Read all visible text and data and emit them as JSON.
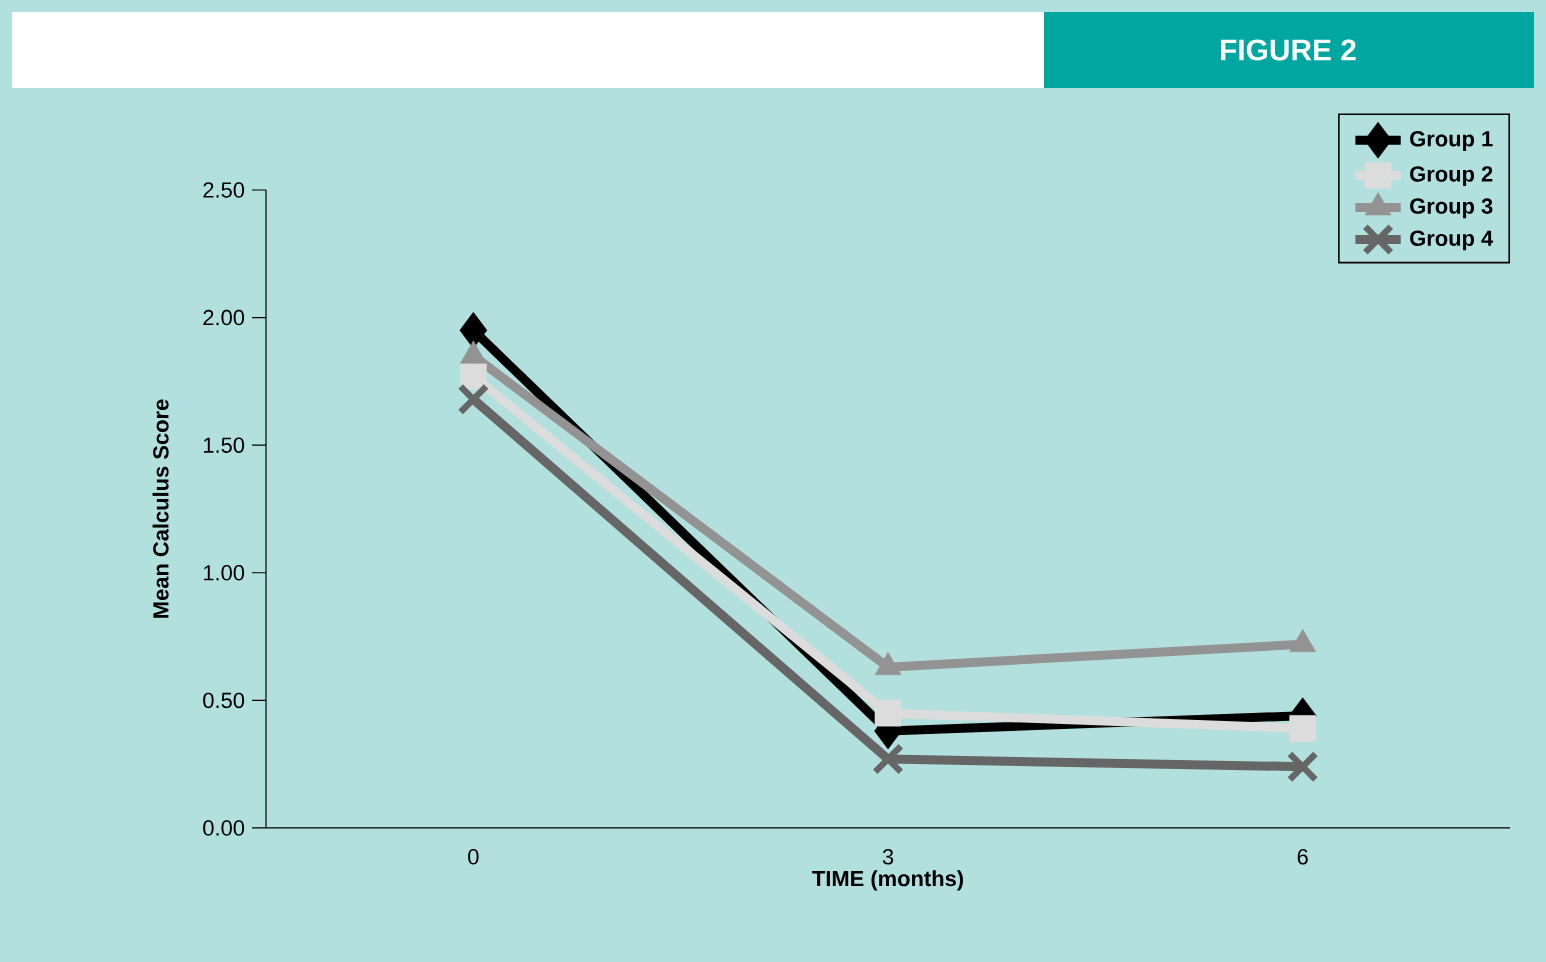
{
  "chart_data": {
    "type": "line",
    "title": "FIGURE 2",
    "xlabel": "TIME (months)",
    "ylabel": "Mean Calculus Score",
    "categories": [
      "0",
      "3",
      "6"
    ],
    "series": [
      {
        "name": "Group 1",
        "color": "#000000",
        "marker": "diamond",
        "values": [
          1.95,
          0.38,
          0.44
        ]
      },
      {
        "name": "Group 2",
        "color": "#dcdcdc",
        "marker": "square",
        "values": [
          1.77,
          0.45,
          0.39
        ]
      },
      {
        "name": "Group 3",
        "color": "#939393",
        "marker": "triangle",
        "values": [
          1.85,
          0.63,
          0.72
        ]
      },
      {
        "name": "Group 4",
        "color": "#666666",
        "marker": "cross",
        "values": [
          1.68,
          0.27,
          0.24
        ]
      }
    ],
    "ylim": [
      0,
      2.5
    ],
    "yticks": [
      {
        "value": 0,
        "label": "0.00"
      },
      {
        "value": 0.5,
        "label": "0.50"
      },
      {
        "value": 1,
        "label": "1.00"
      },
      {
        "value": 1.5,
        "label": "1.50"
      },
      {
        "value": 2,
        "label": "2.00"
      },
      {
        "value": 2.5,
        "label": "2.50"
      }
    ],
    "legend": "top right",
    "grid": false,
    "line_style": "solid"
  }
}
